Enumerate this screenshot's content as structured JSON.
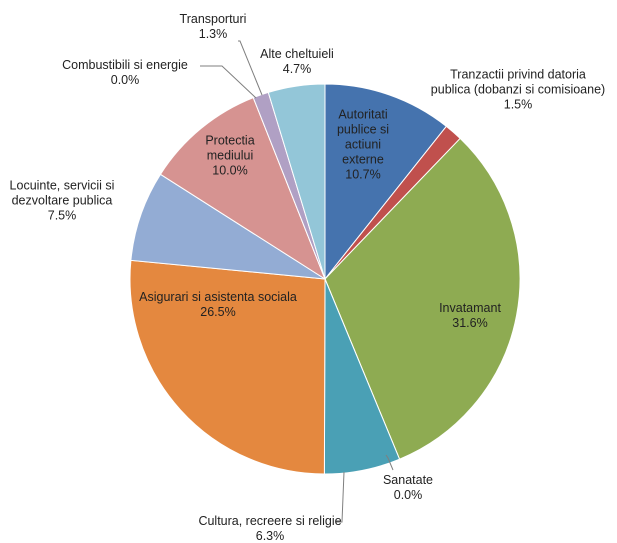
{
  "chart_data": {
    "type": "pie",
    "categories": [
      "Autoritati publice si actiuni externe",
      "Tranzactii privind datoria publica (dobanzi si comisioane)",
      "Invatamant",
      "Sanatate",
      "Cultura, recreere si religie",
      "Asigurari si asistenta sociala",
      "Locuinte, servicii si dezvoltare publica",
      "Protectia mediului",
      "Combustibili si energie",
      "Transporturi",
      "Alte cheltuieli"
    ],
    "values": [
      10.7,
      1.5,
      31.6,
      0.0,
      6.3,
      26.5,
      7.5,
      10.0,
      0.0,
      1.3,
      4.7
    ],
    "value_labels": [
      "10.7%",
      "1.5%",
      "31.6%",
      "0.0%",
      "6.3%",
      "26.5%",
      "7.5%",
      "10.0%",
      "0.0%",
      "1.3%",
      "4.7%"
    ],
    "colors": [
      "#4573ae",
      "#c0504d",
      "#8eab52",
      "#4aa0b5",
      "#4aa0b5",
      "#e4883f",
      "#93acd4",
      "#d69391",
      "#b0a0c4",
      "#b0a0c4",
      "#93c6d8"
    ]
  }
}
